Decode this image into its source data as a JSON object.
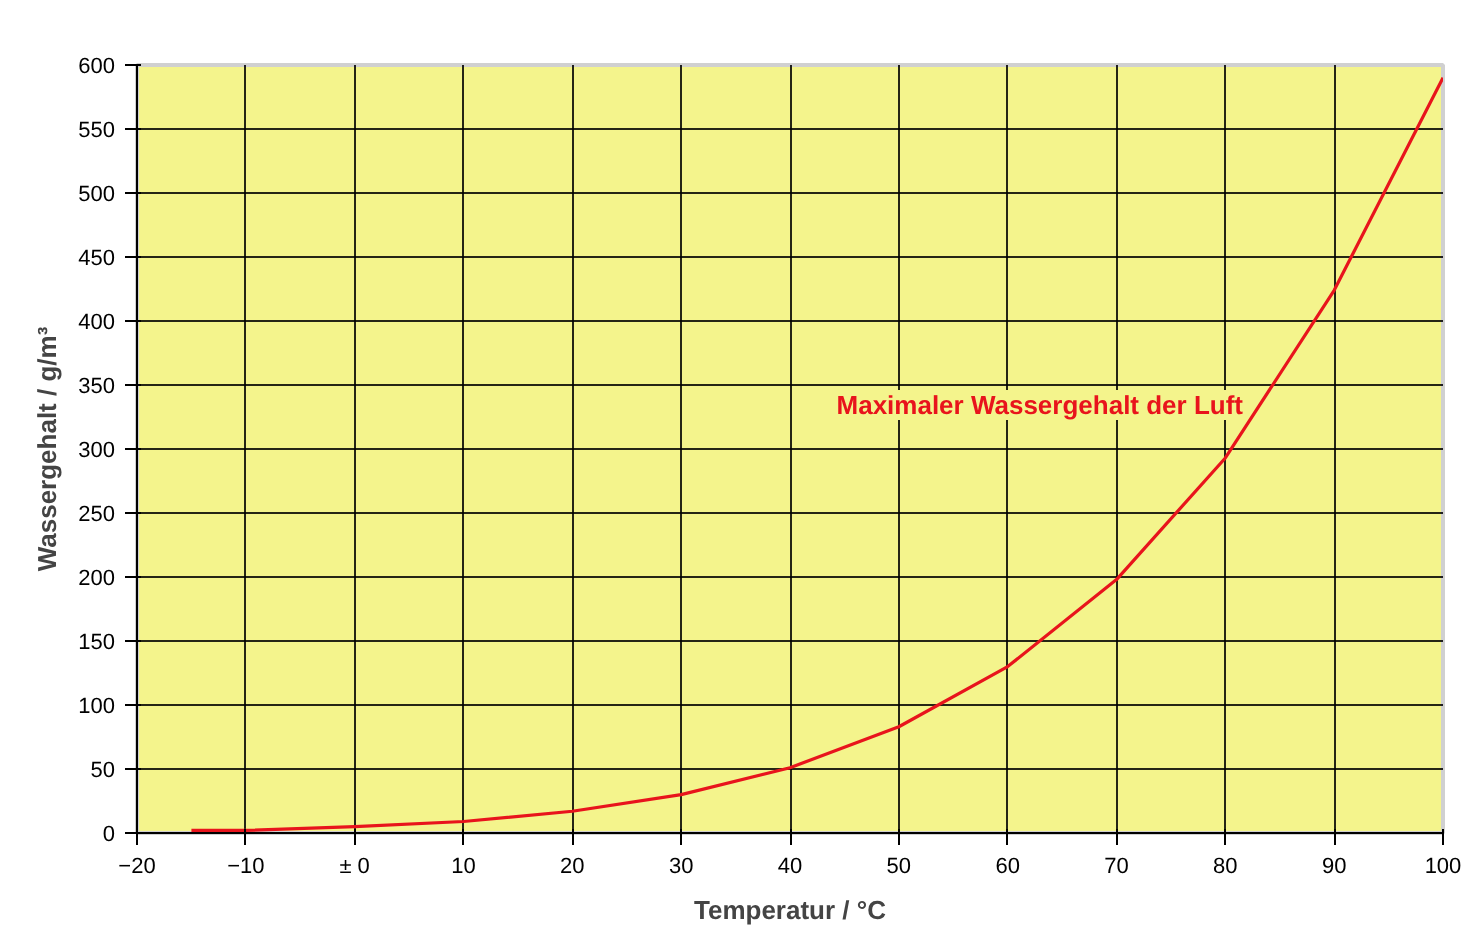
{
  "chart_data": {
    "type": "line",
    "xlabel": "Temperatur / °C",
    "ylabel": "Wassergehalt / g/m³",
    "x": [
      -15,
      -10,
      0,
      10,
      20,
      30,
      40,
      50,
      60,
      70,
      80,
      90,
      100
    ],
    "series": [
      {
        "name": "Maximaler Wassergehalt der Luft",
        "color": "#e8141c",
        "values": [
          2,
          2,
          5,
          9,
          17,
          30,
          51,
          83,
          130,
          198,
          293,
          424,
          590
        ]
      }
    ],
    "xlim": [
      -20,
      100
    ],
    "xticks": [
      -20,
      -10,
      {
        "value": 0,
        "label": "± 0"
      },
      10,
      20,
      30,
      40,
      50,
      60,
      70,
      80,
      90,
      100
    ],
    "ylim": [
      0,
      600
    ],
    "yticks": [
      0,
      50,
      100,
      150,
      200,
      250,
      300,
      350,
      400,
      450,
      500,
      550,
      600
    ],
    "grid": true,
    "marker": "none",
    "line_style": "solid"
  }
}
